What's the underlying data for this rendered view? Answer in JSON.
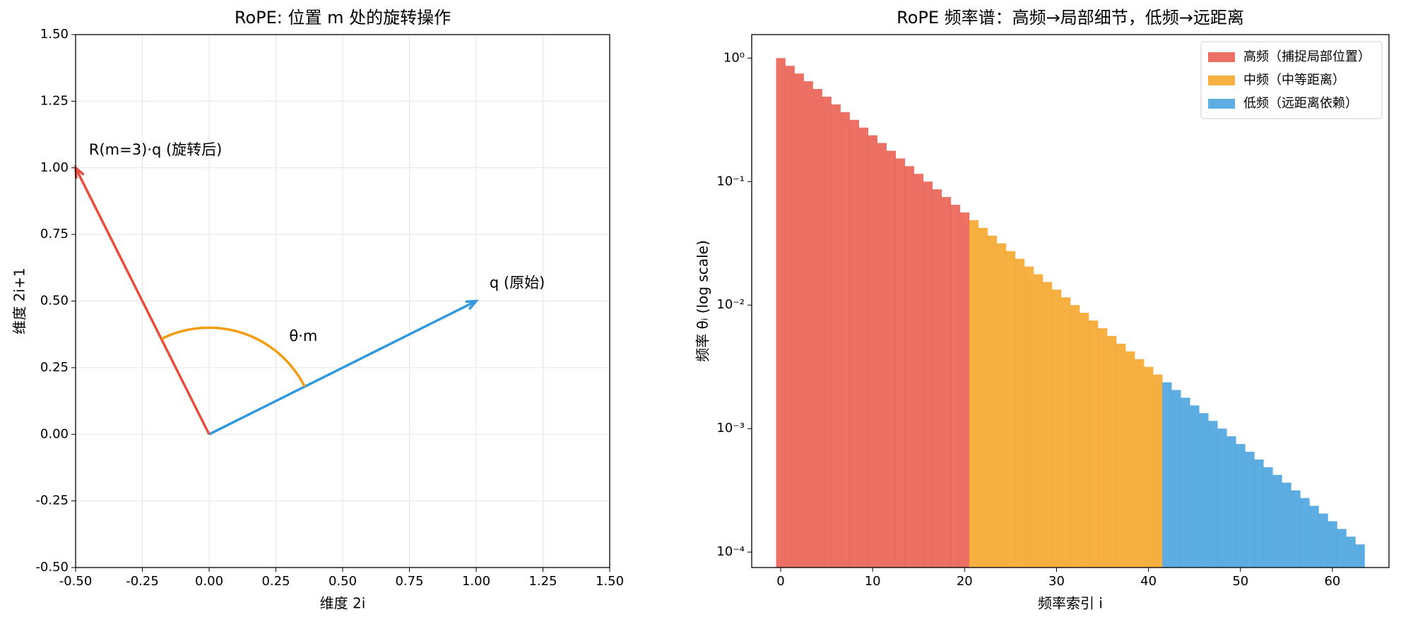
{
  "chart_data": [
    {
      "type": "vector",
      "title": "RoPE: 位置 m 处的旋转操作",
      "x_label": "维度 2i",
      "y_label": "维度 2i+1",
      "xlim": [
        -0.5,
        1.5
      ],
      "ylim": [
        -0.5,
        1.5
      ],
      "xticks": [
        {
          "value": -0.5,
          "label": "-0.50"
        },
        -0.25,
        {
          "value": 0,
          "label": "0.00"
        },
        0.25,
        {
          "value": 0.5,
          "label": "0.50"
        },
        0.75,
        {
          "value": 1,
          "label": "1.00"
        },
        1.25,
        {
          "value": 1.5,
          "label": "1.50"
        }
      ],
      "yticks": [
        {
          "value": -0.5,
          "label": "-0.50"
        },
        -0.25,
        {
          "value": 0,
          "label": "0.00"
        },
        0.25,
        {
          "value": 0.5,
          "label": "0.50"
        },
        0.75,
        {
          "value": 1,
          "label": "1.00"
        },
        1.25,
        {
          "value": 1.5,
          "label": "1.50"
        }
      ],
      "grid": true,
      "series": [
        {
          "color": "#3498db",
          "x": [
            0,
            1
          ],
          "y": [
            0,
            0.5
          ]
        },
        {
          "color": "#e74c3c",
          "x": [
            0,
            -0.5
          ],
          "y": [
            0,
            1
          ]
        }
      ],
      "arc_radius": 0.4,
      "arc_color": "#f39c12",
      "annotations": [
        {
          "text": "q (原始)",
          "x": 1.05,
          "y": 0.55,
          "color": "#3498db"
        },
        {
          "text": "R(m=3)·q (旋转后)",
          "x": -0.45,
          "y": 1.05,
          "color": "#e74c3c"
        },
        {
          "text": "θ·m",
          "x": 0.3,
          "y": 0.35,
          "color": "#f39c12"
        }
      ]
    },
    {
      "type": "bar",
      "title": "RoPE 频率谱：高频→局部细节，低频→远距离",
      "x_label": "频率索引 i",
      "y_label": "频率 θᵢ (log scale)",
      "log_y": true,
      "grid": false,
      "legend": "upper right",
      "xlim": [
        -3.15,
        66.15
      ],
      "xticks": [
        0,
        10,
        20,
        30,
        40,
        50,
        60
      ],
      "ylim": [
        7.5e-05,
        1.55
      ],
      "yticks": [
        {
          "value": 0.0001,
          "label": "10⁻⁴"
        },
        {
          "value": 0.001,
          "label": "10⁻³"
        },
        {
          "value": 0.01,
          "label": "10⁻²"
        },
        {
          "value": 0.1,
          "label": "10⁻¹"
        },
        {
          "value": 1,
          "label": "10⁰"
        }
      ],
      "series": [
        {
          "name": "高频（捕捉局部位置）",
          "color": "#e74c3c",
          "x": [
            0,
            1,
            2,
            3,
            4,
            5,
            6,
            7,
            8,
            9,
            10,
            11,
            12,
            13,
            14,
            15,
            16,
            17,
            18,
            19,
            20
          ],
          "values": [
            1,
            0.866,
            0.7499,
            0.6494,
            0.5623,
            0.487,
            0.4217,
            0.3652,
            0.3162,
            0.2738,
            0.2371,
            0.2054,
            0.1778,
            0.154,
            0.1334,
            0.1155,
            0.1,
            0.0866,
            0.07499,
            0.06494,
            0.05623
          ]
        },
        {
          "name": "中频（中等距离）",
          "color": "#f39c12",
          "x": [
            21,
            22,
            23,
            24,
            25,
            26,
            27,
            28,
            29,
            30,
            31,
            32,
            33,
            34,
            35,
            36,
            37,
            38,
            39,
            40,
            41
          ],
          "values": [
            0.0487,
            0.04217,
            0.03652,
            0.03162,
            0.02738,
            0.02371,
            0.02054,
            0.01778,
            0.0154,
            0.01334,
            0.01155,
            0.01,
            0.00866,
            0.007499,
            0.006494,
            0.005623,
            0.00487,
            0.004217,
            0.003652,
            0.003162,
            0.002738
          ]
        },
        {
          "name": "低频（远距离依赖）",
          "color": "#3498db",
          "x": [
            42,
            43,
            44,
            45,
            46,
            47,
            48,
            49,
            50,
            51,
            52,
            53,
            54,
            55,
            56,
            57,
            58,
            59,
            60,
            61,
            62,
            63
          ],
          "values": [
            0.002371,
            0.002054,
            0.001778,
            0.00154,
            0.001334,
            0.001155,
            0.001,
            0.000866,
            0.0007499,
            0.0006494,
            0.0005623,
            0.000487,
            0.0004217,
            0.0003652,
            0.0003162,
            0.0002738,
            0.0002371,
            0.0002054,
            0.0001778,
            0.000154,
            0.0001334,
            0.0001155
          ]
        }
      ]
    }
  ]
}
